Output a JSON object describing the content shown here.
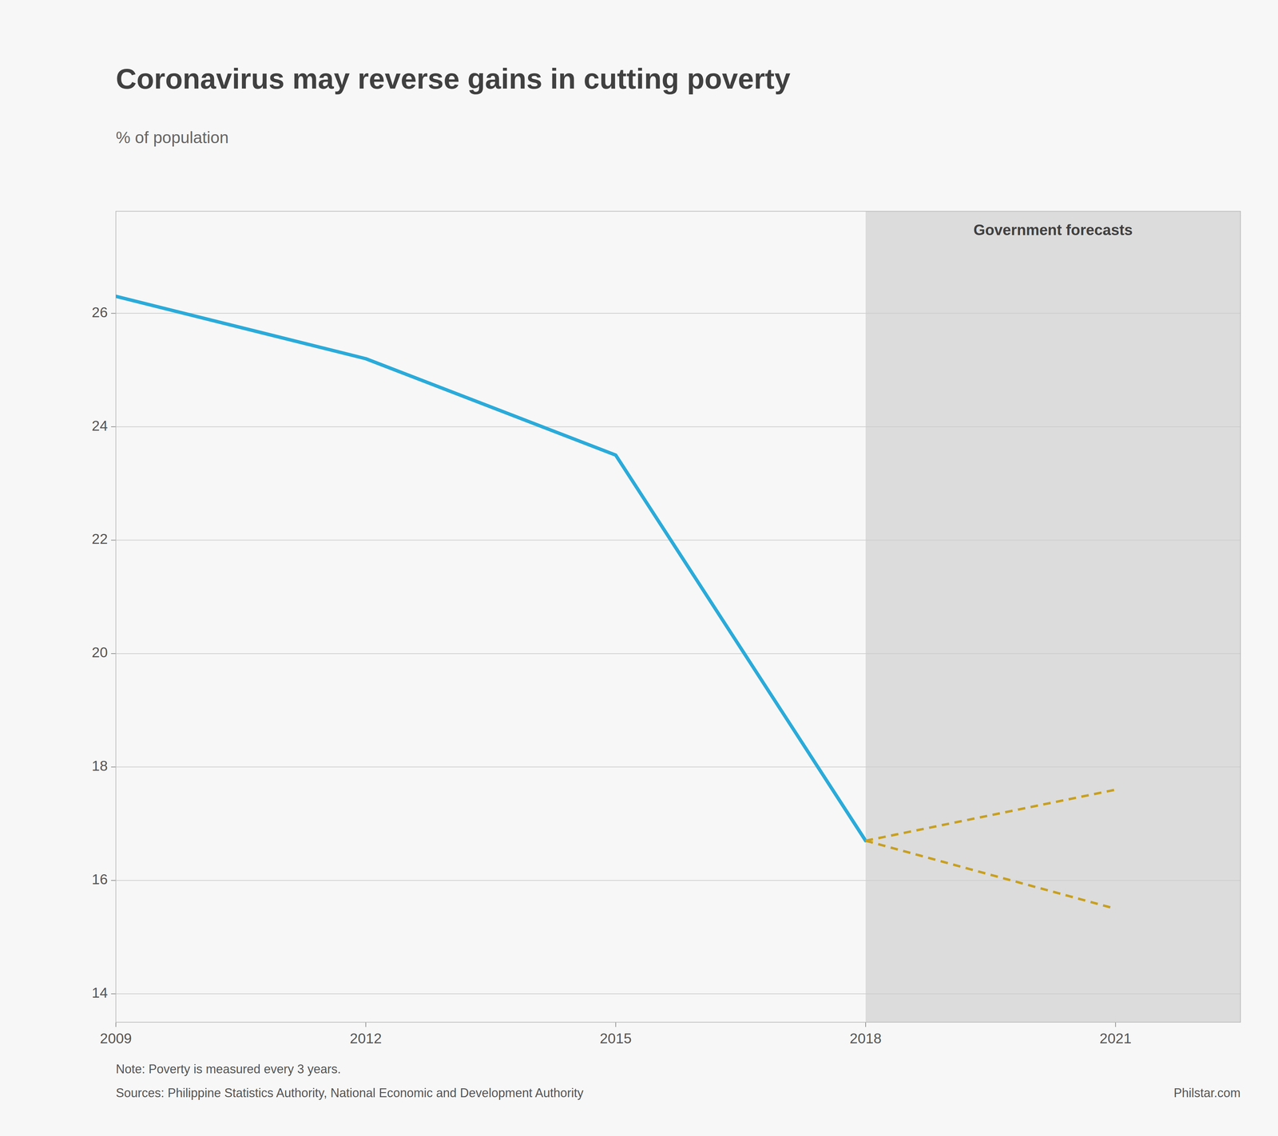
{
  "chart_data": {
    "type": "line",
    "title": "Coronavirus may reverse gains in cutting poverty",
    "subtitle": "% of population",
    "series": [
      {
        "x": [
          2009,
          2012,
          2015,
          2018
        ],
        "values": [
          26.3,
          25.2,
          23.5,
          16.7
        ],
        "color": "#2aabda",
        "line_style": "solid"
      },
      {
        "x": [
          2018,
          2021
        ],
        "values": [
          16.7,
          17.6
        ],
        "color": "#c8a020",
        "line_style": "dashed"
      },
      {
        "x": [
          2018,
          2021
        ],
        "values": [
          16.7,
          15.5
        ],
        "color": "#c8a020",
        "line_style": "dashed"
      }
    ],
    "forecast_region": {
      "start": 2018,
      "label": "Government forecasts",
      "color": "#dcdcdc"
    },
    "xlim": [
      2009,
      2022.5
    ],
    "xticks": [
      2009,
      2012,
      2015,
      2018,
      2021
    ],
    "ylim": [
      13.5,
      27.8
    ],
    "yticks": [
      14,
      16,
      18,
      20,
      22,
      24,
      26
    ],
    "grid": true,
    "note": "Note: Poverty is measured every 3 years.",
    "source": "Sources: Philippine Statistics Authority, National Economic and Development Authority",
    "credit": "Philstar.com"
  }
}
